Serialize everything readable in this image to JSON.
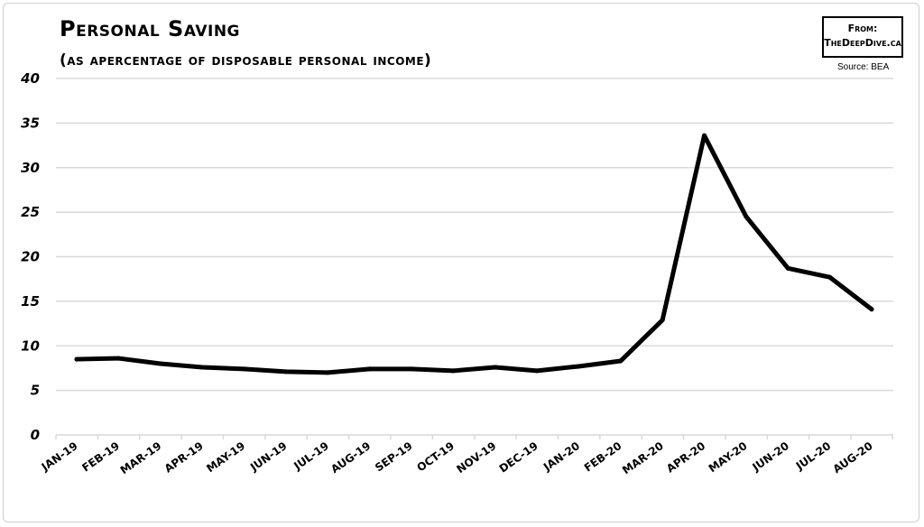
{
  "chart_data": {
    "type": "line",
    "title": "Personal Saving",
    "subtitle": "(as apercentage of disposable personal income)",
    "xlabel": "",
    "ylabel": "",
    "ylim": [
      0,
      40
    ],
    "y_ticks": [
      "0",
      "5",
      "10",
      "15",
      "20",
      "25",
      "30",
      "35",
      "40"
    ],
    "grid": true,
    "categories": [
      "Jan-19",
      "Feb-19",
      "Mar-19",
      "Apr-19",
      "May-19",
      "Jun-19",
      "Jul-19",
      "Aug-19",
      "Sep-19",
      "Oct-19",
      "Nov-19",
      "Dec-19",
      "Jan-20",
      "Feb-20",
      "Mar-20",
      "Apr-20",
      "May-20",
      "Jun-20",
      "Jul-20",
      "Aug-20"
    ],
    "series": [
      {
        "values": [
          8.5,
          8.6,
          8.0,
          7.6,
          7.4,
          7.1,
          7.0,
          7.4,
          7.4,
          7.2,
          7.6,
          7.2,
          7.7,
          8.3,
          12.9,
          33.6,
          24.5,
          18.7,
          17.7,
          14.1
        ]
      }
    ],
    "line_color": "#000000",
    "grid_color": "#d9d9d9"
  },
  "badge": {
    "line1": "From:",
    "line2": "TheDeepDive.ca"
  },
  "source": "Source: BEA"
}
